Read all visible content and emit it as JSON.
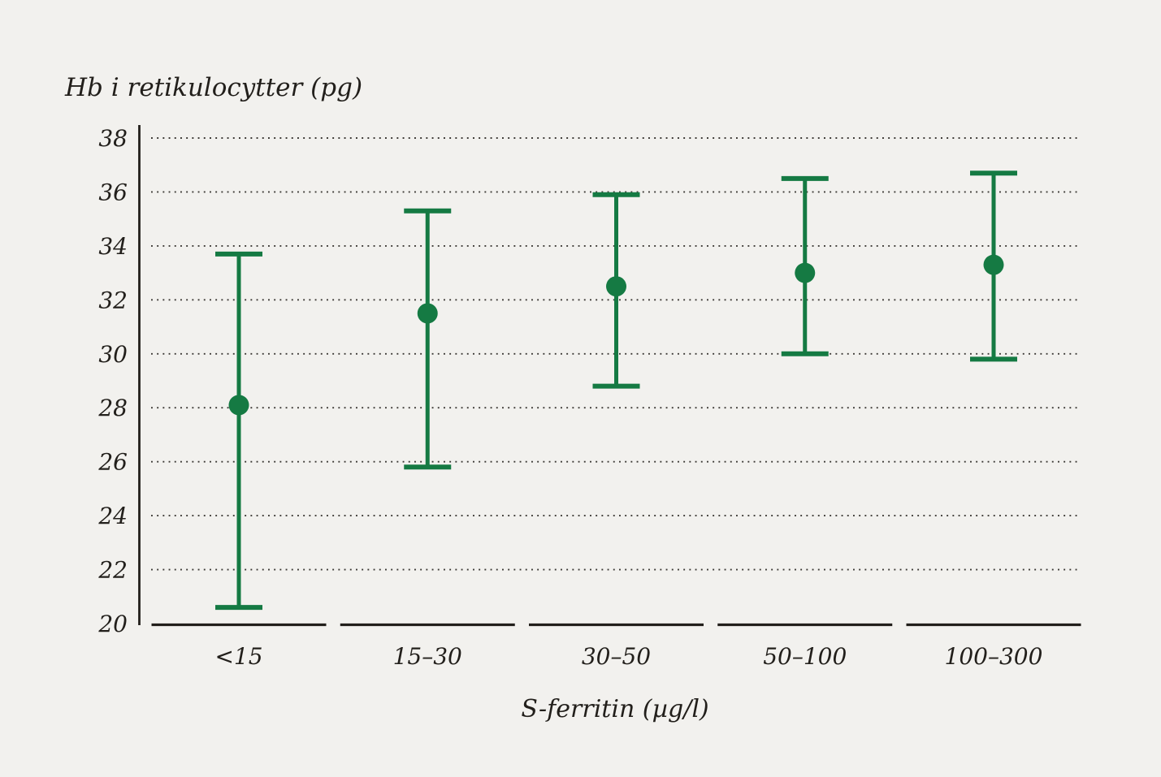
{
  "chart_data": {
    "type": "scatter",
    "subtype": "point-with-error-bars",
    "ylabel": "Hb i retikulocytter (pg)",
    "xlabel": "S-ferritin (µg/l)",
    "categories": [
      "<15",
      "15–30",
      "30–50",
      "50–100",
      "100–300"
    ],
    "series": [
      {
        "name": "Hb i retikulocytter",
        "means": [
          28.1,
          31.5,
          32.5,
          33.0,
          33.3
        ],
        "upper": [
          33.7,
          35.3,
          35.9,
          36.5,
          36.7
        ],
        "lower": [
          20.6,
          25.8,
          28.8,
          30.0,
          29.8
        ]
      }
    ],
    "ylim": [
      20,
      38
    ],
    "yticks": [
      38,
      36,
      34,
      32,
      30,
      28,
      26,
      24,
      22,
      20
    ],
    "grid": "horizontal-dotted",
    "legend": "none",
    "colors": {
      "marker": "#157a43",
      "axis": "#221f1b",
      "grid": "#3a3733",
      "text": "#221f1b",
      "background": "#f2f1ee"
    }
  }
}
